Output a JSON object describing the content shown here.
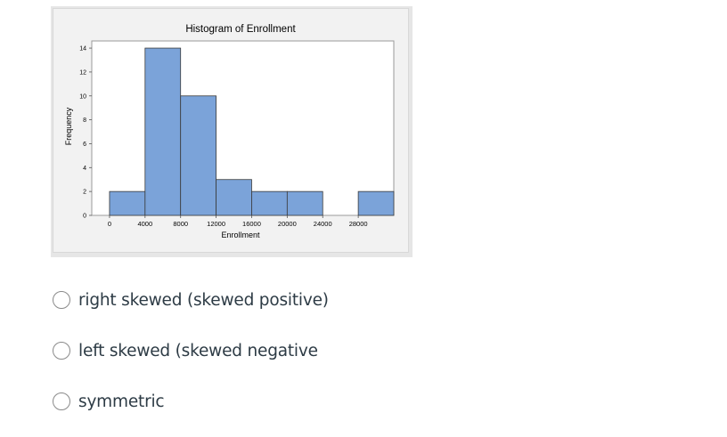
{
  "chart_data": {
    "type": "histogram",
    "title": "Histogram of Enrollment",
    "xlabel": "Enrollment",
    "ylabel": "Frequency",
    "bins": [
      {
        "start": 0,
        "end": 4000,
        "count": 2
      },
      {
        "start": 4000,
        "end": 8000,
        "count": 14
      },
      {
        "start": 8000,
        "end": 12000,
        "count": 10
      },
      {
        "start": 12000,
        "end": 16000,
        "count": 3
      },
      {
        "start": 16000,
        "end": 20000,
        "count": 2
      },
      {
        "start": 20000,
        "end": 24000,
        "count": 2
      },
      {
        "start": 24000,
        "end": 28000,
        "count": 0
      },
      {
        "start": 28000,
        "end": 32000,
        "count": 2
      }
    ],
    "xticks": [
      0,
      4000,
      8000,
      12000,
      16000,
      20000,
      24000,
      28000
    ],
    "yticks": [
      0,
      2,
      4,
      6,
      8,
      10,
      12,
      14
    ],
    "xlim": [
      -2000,
      32000
    ],
    "ylim": [
      0,
      14.6
    ],
    "bar_color": "#7ba3d9",
    "bar_edge_color": "#3a3a3a",
    "grid": false
  },
  "question": {
    "options": [
      {
        "label": "right skewed (skewed positive)"
      },
      {
        "label": "left skewed (skewed negative"
      },
      {
        "label": "symmetric"
      }
    ]
  }
}
